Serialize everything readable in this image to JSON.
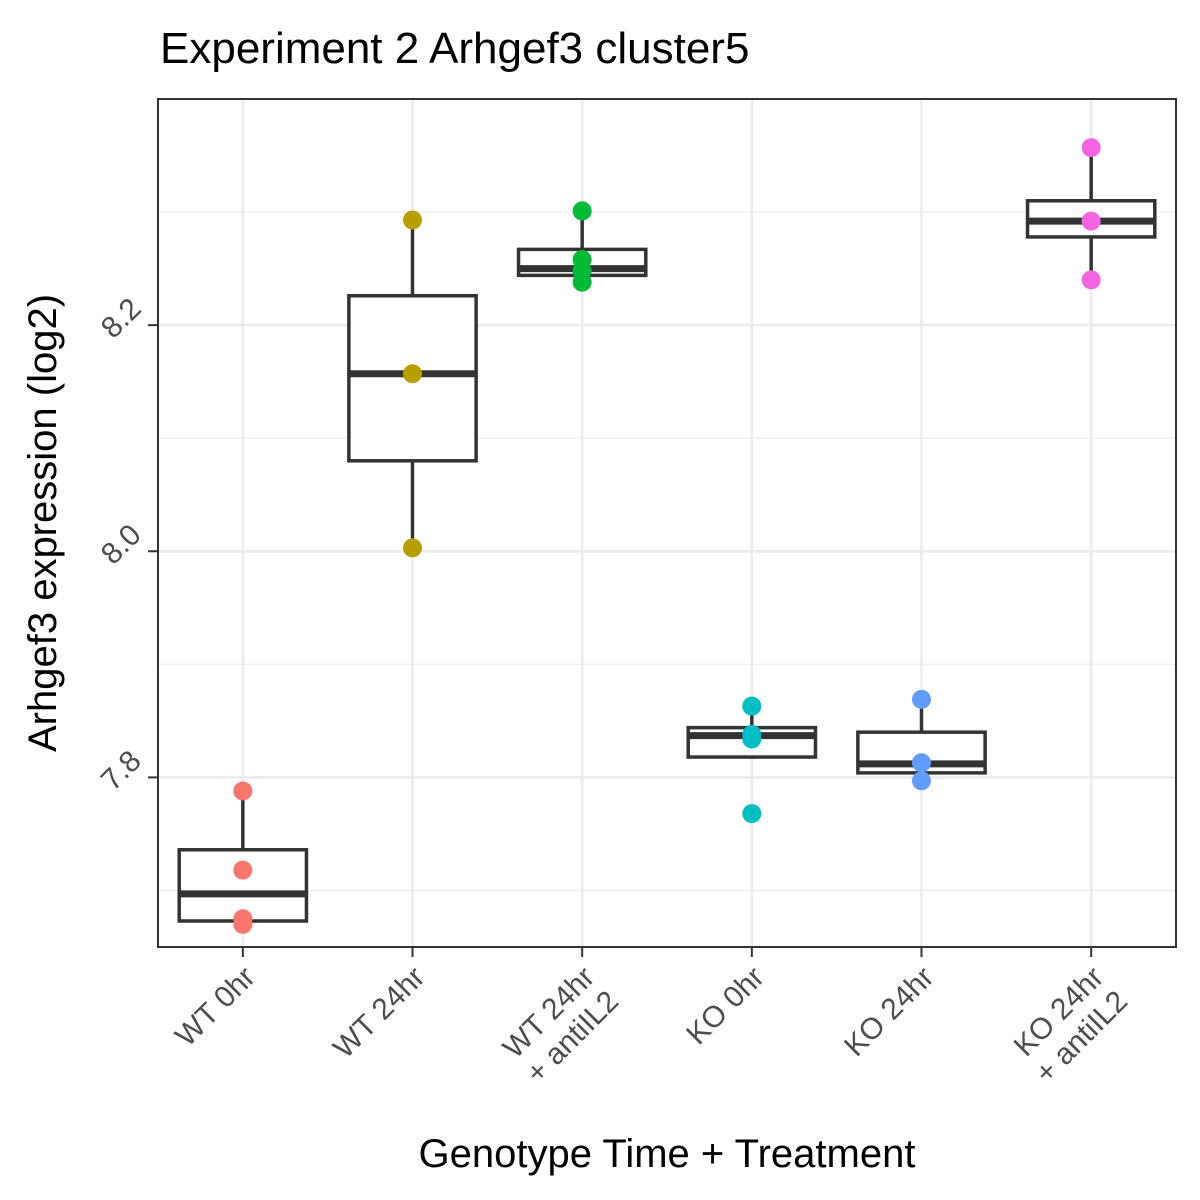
{
  "chart_data": {
    "type": "box",
    "title": "Experiment 2 Arhgef3 cluster5",
    "xlabel": "Genotype Time + Treatment",
    "ylabel": "Arhgef3 expression (log2)",
    "ylim": [
      7.65,
      8.4
    ],
    "yticks": [
      7.8,
      8.0,
      8.2
    ],
    "y_tick_labels": [
      "7.8",
      "8.0",
      "8.2"
    ],
    "grid": true,
    "legend": "none",
    "categories": [
      {
        "label_lines": [
          "WT 0hr"
        ],
        "color": "#F8766D",
        "box": {
          "q1": 7.673,
          "median": 7.697,
          "q3": 7.736,
          "whisker_low": 7.67,
          "whisker_high": 7.788
        },
        "points": [
          7.788,
          7.718,
          7.675,
          7.67
        ]
      },
      {
        "label_lines": [
          "WT 24hr"
        ],
        "color": "#B79F00",
        "box": {
          "q1": 8.08,
          "median": 8.157,
          "q3": 8.226,
          "whisker_low": 8.003,
          "whisker_high": 8.293
        },
        "points": [
          8.293,
          8.157,
          8.003
        ]
      },
      {
        "label_lines": [
          "WT 24hr",
          "+ antiIL2"
        ],
        "color": "#00BA38",
        "box": {
          "q1": 8.244,
          "median": 8.25,
          "q3": 8.267,
          "whisker_low": 8.238,
          "whisker_high": 8.301
        },
        "points": [
          8.301,
          8.258,
          8.248,
          8.238
        ]
      },
      {
        "label_lines": [
          "KO 0hr"
        ],
        "color": "#00BFC4",
        "box": {
          "q1": 7.818,
          "median": 7.837,
          "q3": 7.844,
          "whisker_low": 7.818,
          "whisker_high": 7.863
        },
        "points": [
          7.863,
          7.838,
          7.834,
          7.768
        ]
      },
      {
        "label_lines": [
          "KO 24hr"
        ],
        "color": "#619CFF",
        "box": {
          "q1": 7.804,
          "median": 7.812,
          "q3": 7.84,
          "whisker_low": 7.804,
          "whisker_high": 7.869
        },
        "points": [
          7.869,
          7.813,
          7.797
        ]
      },
      {
        "label_lines": [
          "KO 24hr",
          "+ antiIL2"
        ],
        "color": "#F564E3",
        "box": {
          "q1": 8.278,
          "median": 8.292,
          "q3": 8.31,
          "whisker_low": 8.24,
          "whisker_high": 8.357
        },
        "points": [
          8.357,
          8.292,
          8.24
        ]
      }
    ]
  }
}
